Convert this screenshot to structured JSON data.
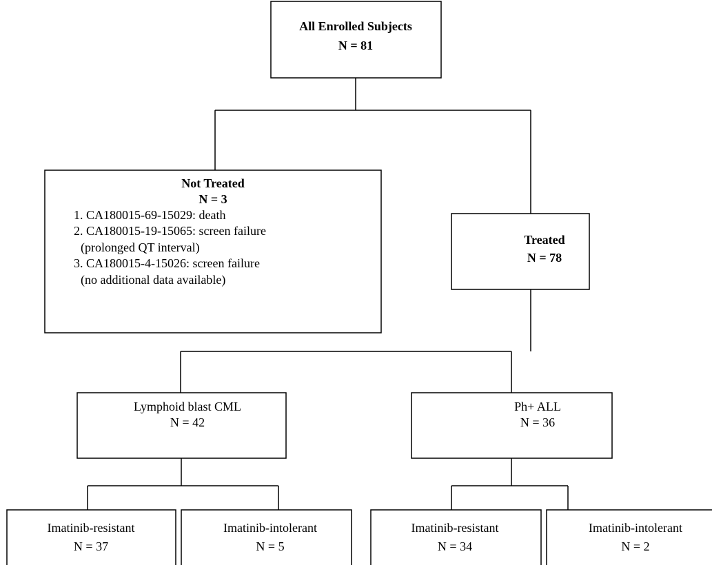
{
  "nodes": [
    {
      "label": "All Enrolled Subjects",
      "count": "N = 81"
    },
    {
      "label": "Not Treated",
      "count": "N = 3",
      "items": [
        {
          "text": "1. CA180015-69-15029: death"
        },
        {
          "text": "2. CA180015-19-15065: screen failure",
          "detail": "(prolonged QT interval)"
        },
        {
          "text": "3. CA180015-4-15026: screen failure",
          "detail": "(no additional data available)"
        }
      ]
    },
    {
      "label": "Treated",
      "count": "N = 78"
    },
    {
      "label": "Lymphoid blast CML",
      "count": "N = 42"
    },
    {
      "label": "Ph+ ALL",
      "count": "N = 36"
    },
    {
      "label": "Imatinib-resistant",
      "count": "N = 37"
    },
    {
      "label": "Imatinib-intolerant",
      "count": "N = 5"
    },
    {
      "label": "Imatinib-resistant",
      "count": "N = 34"
    },
    {
      "label": "Imatinib-intolerant",
      "count": "N = 2"
    }
  ]
}
